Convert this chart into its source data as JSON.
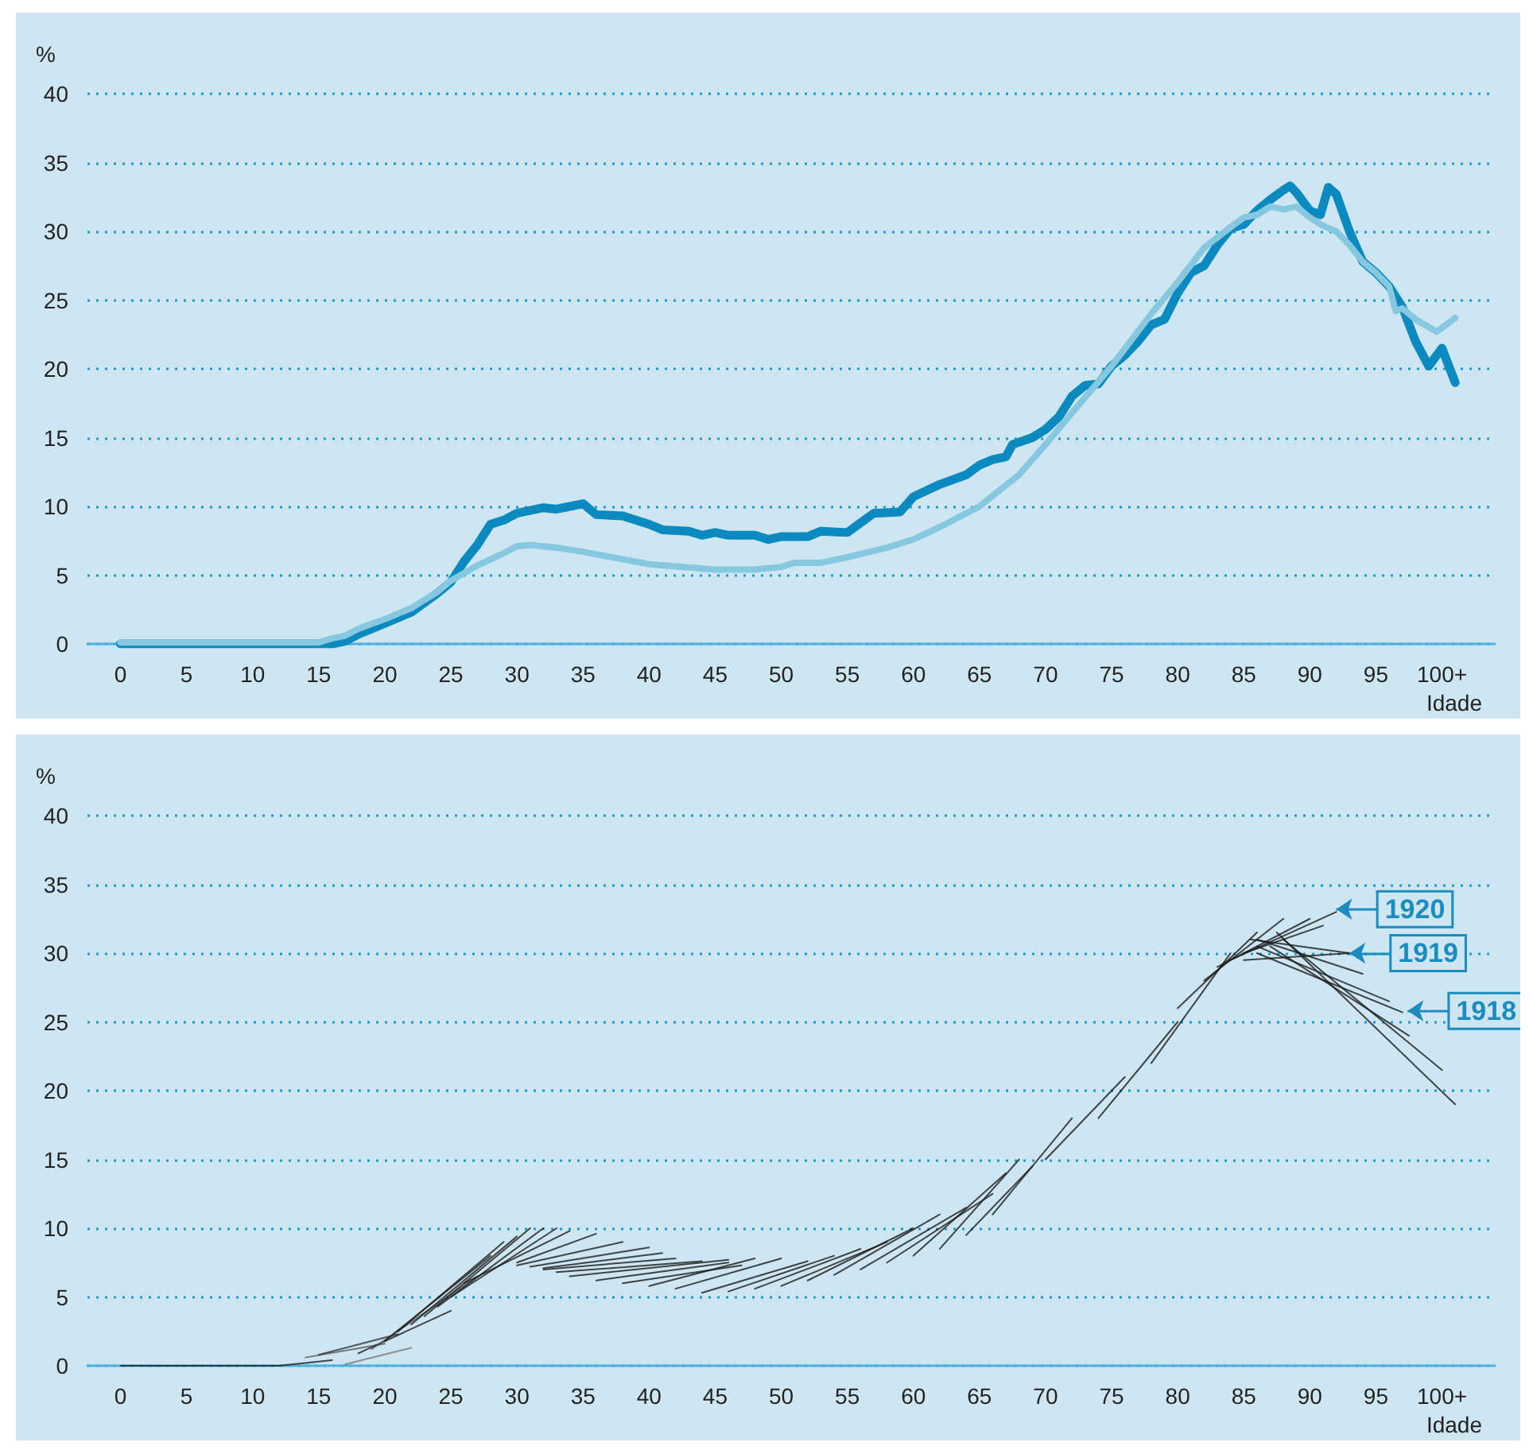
{
  "chart_data": [
    {
      "type": "line",
      "xlabel": "Idade",
      "ylabel": "%",
      "xlim": [
        -2.5,
        104
      ],
      "ylim": [
        0,
        40
      ],
      "xticks": [
        0,
        5,
        10,
        15,
        20,
        25,
        30,
        35,
        40,
        45,
        50,
        55,
        60,
        65,
        70,
        75,
        80,
        85,
        90,
        95,
        {
          "value": 100,
          "label": "100+"
        }
      ],
      "yticks": [
        0,
        5,
        10,
        15,
        20,
        25,
        30,
        35,
        40
      ],
      "grid": "y",
      "marker": "none",
      "line_style": "solid",
      "series": [
        {
          "color": "#0a8abf",
          "x": [
            0,
            5,
            10,
            15,
            16,
            17,
            18,
            20,
            22,
            24,
            25,
            26,
            27,
            28,
            29,
            30,
            32,
            33,
            34,
            35,
            36,
            38,
            40,
            41,
            43,
            44,
            45,
            46,
            48,
            49,
            50,
            52,
            53,
            55,
            56,
            57,
            59,
            60,
            62,
            64,
            65,
            66,
            67,
            67.5,
            69,
            70,
            71,
            72,
            73,
            74,
            75,
            76,
            77,
            78,
            79,
            80,
            81,
            82,
            83,
            84,
            85,
            86,
            87,
            88,
            88.5,
            89,
            90,
            90.8,
            91.4,
            92,
            93,
            94,
            95,
            96,
            97,
            98,
            99,
            100,
            101
          ],
          "values": [
            0,
            0,
            0,
            0,
            0,
            0.2,
            0.7,
            1.5,
            2.3,
            3.7,
            4.5,
            6,
            7.2,
            8.7,
            9,
            9.5,
            9.9,
            9.8,
            10,
            10.2,
            9.4,
            9.3,
            8.7,
            8.3,
            8.2,
            7.9,
            8.1,
            7.9,
            7.9,
            7.6,
            7.8,
            7.8,
            8.2,
            8.1,
            8.8,
            9.5,
            9.6,
            10.7,
            11.6,
            12.3,
            13,
            13.4,
            13.6,
            14.5,
            15,
            15.6,
            16.5,
            18,
            18.8,
            18.9,
            20.2,
            21,
            22,
            23.2,
            23.6,
            25.5,
            27,
            27.5,
            29,
            30.2,
            30.5,
            31.5,
            32.3,
            33,
            33.3,
            32.8,
            31.5,
            31.2,
            33.2,
            32.7,
            30,
            27.8,
            27,
            26,
            24.5,
            22,
            20.2,
            21.5,
            19
          ]
        },
        {
          "color": "#85c8e0",
          "x": [
            0,
            15,
            16,
            17,
            18,
            20,
            22,
            24,
            25,
            27,
            29,
            30,
            31,
            33,
            35,
            40,
            45,
            48,
            50,
            51,
            53,
            55,
            58,
            60,
            62,
            65,
            68,
            70,
            72,
            75,
            78,
            80,
            82,
            84,
            85,
            86,
            87,
            88,
            89,
            90,
            91,
            92,
            93,
            94,
            95,
            96,
            96.5,
            97,
            98,
            99.6,
            101
          ],
          "values": [
            0.1,
            0.1,
            0.4,
            0.6,
            1.1,
            1.8,
            2.6,
            3.8,
            4.6,
            5.7,
            6.6,
            7.1,
            7.2,
            7,
            6.7,
            5.8,
            5.4,
            5.4,
            5.6,
            5.9,
            5.9,
            6.3,
            7,
            7.6,
            8.5,
            10,
            12.3,
            14.5,
            16.8,
            20.2,
            24,
            26.3,
            28.8,
            30.3,
            31,
            31.2,
            31.8,
            31.6,
            31.8,
            31,
            30.4,
            30,
            29,
            27.8,
            27,
            26,
            24.2,
            24.4,
            23.6,
            22.7,
            23.7
          ]
        }
      ]
    },
    {
      "type": "line",
      "xlabel": "Idade",
      "ylabel": "%",
      "xlim": [
        -2.5,
        104
      ],
      "ylim": [
        0,
        40
      ],
      "xticks": [
        0,
        5,
        10,
        15,
        20,
        25,
        30,
        35,
        40,
        45,
        50,
        55,
        60,
        65,
        70,
        75,
        80,
        85,
        90,
        95,
        {
          "value": 100,
          "label": "100+"
        }
      ],
      "yticks": [
        0,
        5,
        10,
        15,
        20,
        25,
        30,
        35,
        40
      ],
      "grid": "y",
      "marker": "none",
      "line_style": "solid",
      "annotations": [
        {
          "text": "1920",
          "x": 92,
          "y": 33.2
        },
        {
          "text": "1919",
          "x": 93,
          "y": 30
        },
        {
          "text": "1918",
          "x": 97.4,
          "y": 25.8
        }
      ],
      "series": [
        {
          "color": "#1a1a1a",
          "x": [
            0,
            12,
            16
          ],
          "values": [
            0,
            0,
            0.4
          ]
        },
        {
          "color": "#555555",
          "x": [
            14,
            20
          ],
          "values": [
            0.6,
            1.6
          ]
        },
        {
          "color": "#333333",
          "x": [
            15,
            21
          ],
          "values": [
            0.8,
            2.3
          ]
        },
        {
          "color": "#777777",
          "x": [
            17,
            22
          ],
          "values": [
            0.1,
            1.3
          ]
        },
        {
          "color": "#1a1a1a",
          "x": [
            18,
            25
          ],
          "values": [
            0.9,
            4
          ]
        },
        {
          "color": "#555555",
          "x": [
            19,
            27
          ],
          "values": [
            1.2,
            6.5
          ]
        },
        {
          "color": "#1a1a1a",
          "x": [
            20,
            28
          ],
          "values": [
            1.8,
            8
          ]
        },
        {
          "color": "#1a1a1a",
          "x": [
            21,
            29
          ],
          "values": [
            2.5,
            9
          ]
        },
        {
          "color": "#1a1a1a",
          "x": [
            22,
            30
          ],
          "values": [
            3,
            9.4
          ]
        },
        {
          "color": "#1a1a1a",
          "x": [
            23,
            31
          ],
          "values": [
            3.6,
            10
          ]
        },
        {
          "color": "#1a1a1a",
          "x": [
            24,
            32
          ],
          "values": [
            4.3,
            10
          ]
        },
        {
          "color": "#1a1a1a",
          "x": [
            25,
            33
          ],
          "values": [
            5,
            10
          ]
        },
        {
          "color": "#1a1a1a",
          "x": [
            26,
            34
          ],
          "values": [
            6,
            9.8
          ]
        },
        {
          "color": "#1a1a1a",
          "x": [
            30,
            36
          ],
          "values": [
            7.5,
            9.6
          ]
        },
        {
          "color": "#1a1a1a",
          "x": [
            30,
            38
          ],
          "values": [
            7.3,
            9
          ]
        },
        {
          "color": "#1a1a1a",
          "x": [
            31,
            40
          ],
          "values": [
            7.2,
            8.6
          ]
        },
        {
          "color": "#1a1a1a",
          "x": [
            32,
            41
          ],
          "values": [
            7.1,
            8.2
          ]
        },
        {
          "color": "#1a1a1a",
          "x": [
            32,
            42
          ],
          "values": [
            7,
            7.8
          ]
        },
        {
          "color": "#1a1a1a",
          "x": [
            33,
            44
          ],
          "values": [
            6.8,
            7.6
          ]
        },
        {
          "color": "#1a1a1a",
          "x": [
            34,
            46
          ],
          "values": [
            6.5,
            7.7
          ]
        },
        {
          "color": "#1a1a1a",
          "x": [
            36,
            46
          ],
          "values": [
            6.2,
            7.5
          ]
        },
        {
          "color": "#1a1a1a",
          "x": [
            38,
            47
          ],
          "values": [
            6,
            7.3
          ]
        },
        {
          "color": "#1a1a1a",
          "x": [
            40,
            48
          ],
          "values": [
            5.8,
            7.8
          ]
        },
        {
          "color": "#1a1a1a",
          "x": [
            42,
            50
          ],
          "values": [
            5.6,
            7.8
          ]
        },
        {
          "color": "#1a1a1a",
          "x": [
            44,
            52
          ],
          "values": [
            5.3,
            7.6
          ]
        },
        {
          "color": "#1a1a1a",
          "x": [
            46,
            54
          ],
          "values": [
            5.4,
            8
          ]
        },
        {
          "color": "#1a1a1a",
          "x": [
            48,
            56
          ],
          "values": [
            5.6,
            8.5
          ]
        },
        {
          "color": "#1a1a1a",
          "x": [
            50,
            58
          ],
          "values": [
            5.8,
            9
          ]
        },
        {
          "color": "#1a1a1a",
          "x": [
            52,
            60
          ],
          "values": [
            6.2,
            10
          ]
        },
        {
          "color": "#1a1a1a",
          "x": [
            54,
            62
          ],
          "values": [
            6.6,
            11
          ]
        },
        {
          "color": "#1a1a1a",
          "x": [
            56,
            64
          ],
          "values": [
            7,
            11.5
          ]
        },
        {
          "color": "#1a1a1a",
          "x": [
            58,
            66
          ],
          "values": [
            7.5,
            12.5
          ]
        },
        {
          "color": "#1a1a1a",
          "x": [
            60,
            67
          ],
          "values": [
            8,
            14
          ]
        },
        {
          "color": "#1a1a1a",
          "x": [
            62,
            68
          ],
          "values": [
            8.5,
            15
          ]
        },
        {
          "color": "#1a1a1a",
          "x": [
            64,
            69
          ],
          "values": [
            9.5,
            14.5
          ]
        },
        {
          "color": "#1a1a1a",
          "x": [
            66,
            72
          ],
          "values": [
            11,
            18
          ]
        },
        {
          "color": "#1a1a1a",
          "x": [
            70,
            76
          ],
          "values": [
            15,
            21
          ]
        },
        {
          "color": "#1a1a1a",
          "x": [
            74,
            80
          ],
          "values": [
            18,
            25
          ]
        },
        {
          "color": "#1a1a1a",
          "x": [
            78,
            84
          ],
          "values": [
            22,
            30
          ]
        },
        {
          "color": "#1a1a1a",
          "x": [
            80,
            86
          ],
          "values": [
            26,
            31.5
          ]
        },
        {
          "color": "#1a1a1a",
          "x": [
            82,
            88
          ],
          "values": [
            28,
            32.5
          ]
        },
        {
          "color": "#1a1a1a",
          "x": [
            83,
            90
          ],
          "values": [
            29,
            32.5
          ]
        },
        {
          "color": "#1a1a1a",
          "x": [
            84,
            92
          ],
          "values": [
            29.5,
            33
          ]
        },
        {
          "color": "#1a1a1a",
          "x": [
            85,
            91
          ],
          "values": [
            30,
            32
          ]
        },
        {
          "color": "#1a1a1a",
          "x": [
            85,
            93
          ],
          "values": [
            29.5,
            30
          ]
        },
        {
          "color": "#1a1a1a",
          "x": [
            85.5,
            93
          ],
          "values": [
            31,
            30
          ]
        },
        {
          "color": "#1a1a1a",
          "x": [
            86,
            94
          ],
          "values": [
            31,
            28.5
          ]
        },
        {
          "color": "#1a1a1a",
          "x": [
            86,
            96
          ],
          "values": [
            30.5,
            26.5
          ]
        },
        {
          "color": "#1a1a1a",
          "x": [
            86,
            97
          ],
          "values": [
            30,
            25.7
          ]
        },
        {
          "color": "#1a1a1a",
          "x": [
            87,
            97.5
          ],
          "values": [
            30.5,
            24
          ]
        },
        {
          "color": "#1a1a1a",
          "x": [
            88,
            100
          ],
          "values": [
            31,
            21.5
          ]
        },
        {
          "color": "#1a1a1a",
          "x": [
            87.5,
            101
          ],
          "values": [
            31.5,
            19
          ]
        }
      ]
    }
  ]
}
